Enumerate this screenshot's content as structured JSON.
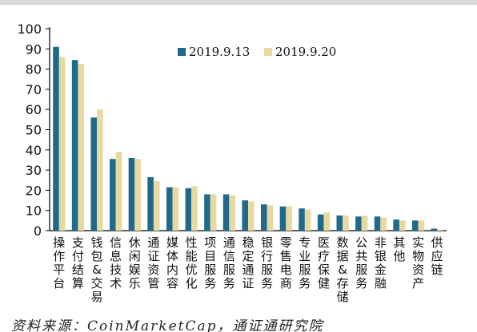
{
  "chart_data": {
    "type": "bar",
    "categories": [
      "操作平台",
      "支付结算",
      "钱包&交易",
      "信息技术",
      "休闲娱乐",
      "通证资管",
      "媒体内容",
      "性能优化",
      "项目服务",
      "通信服务",
      "稳定通证",
      "银行服务",
      "零售电商",
      "专业服务",
      "医疗保健",
      "数据&存储",
      "公共服务",
      "非银金融",
      "其他",
      "实物资产",
      "供应链"
    ],
    "series": [
      {
        "name": "2019.9.13",
        "color": "#1f6a8a",
        "values": [
          91,
          84.5,
          56,
          35.5,
          36,
          26.5,
          21.5,
          21,
          18,
          18,
          15,
          13,
          12,
          11,
          8,
          7.5,
          7,
          7,
          5.5,
          5,
          1
        ]
      },
      {
        "name": "2019.9.20",
        "color": "#e8d9a0",
        "values": [
          86,
          82.5,
          60,
          39,
          35.5,
          24.5,
          21.5,
          22,
          18,
          17.5,
          14.5,
          12.5,
          12,
          10.5,
          9,
          7.5,
          7.5,
          6.5,
          5,
          5,
          0.5
        ]
      }
    ],
    "ylim": [
      0,
      100
    ],
    "yticks": [
      0,
      10,
      20,
      30,
      40,
      50,
      60,
      70,
      80,
      90,
      100
    ],
    "legend": "top-right",
    "grid": false
  },
  "source_text": "资料来源：CoinMarketCap，通证通研究院"
}
